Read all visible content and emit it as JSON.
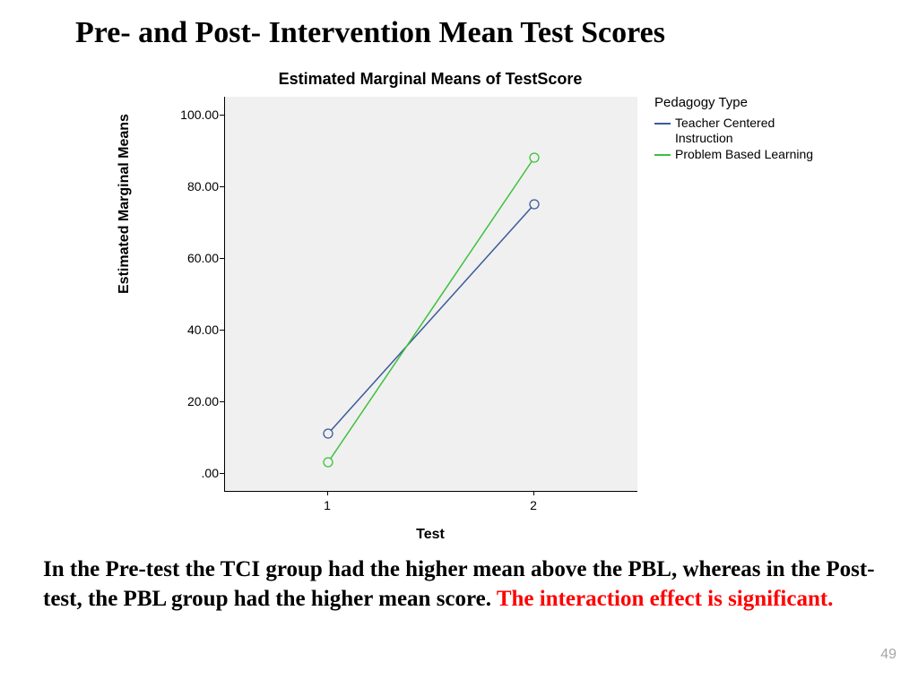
{
  "slide": {
    "title": "Pre- and Post- Intervention Mean Test Scores",
    "page_number": "49"
  },
  "chart": {
    "type": "line",
    "title": "Estimated Marginal Means of TestScore",
    "title_fontsize": 18,
    "x_label": "Test",
    "y_label": "Estimated Marginal Means",
    "label_fontsize": 16,
    "tick_fontsize": 14,
    "background_color": "#f0f0f0",
    "axis_color": "#000000",
    "x_categories": [
      "1",
      "2"
    ],
    "y_ticks": [
      ".00",
      "20.00",
      "40.00",
      "60.00",
      "80.00",
      "100.00"
    ],
    "y_tick_values": [
      0,
      20,
      40,
      60,
      80,
      100
    ],
    "ylim": [
      -5,
      105
    ],
    "series": [
      {
        "name": "Teacher Centered Instruction",
        "name_short": "Teacher Centered\nInstruction",
        "color": "#3b5b9a",
        "marker": "circle-open",
        "marker_size": 5,
        "line_width": 1.5,
        "values": [
          11,
          75
        ]
      },
      {
        "name": "Problem Based Learning",
        "name_short": "Problem Based Learning",
        "color": "#3cc13c",
        "marker": "circle-open",
        "marker_size": 5,
        "line_width": 1.5,
        "values": [
          3,
          88
        ]
      }
    ],
    "legend": {
      "title": "Pedagogy Type",
      "fontsize": 15,
      "position": "right-top"
    }
  },
  "caption": {
    "text_main": "In the Pre-test the TCI group had the higher mean above the PBL, whereas in the Post-test, the PBL group had the higher  mean score.  ",
    "text_significant": "The interaction effect is significant.",
    "fontsize": 25,
    "main_color": "#000000",
    "sig_color": "#ff0000"
  }
}
